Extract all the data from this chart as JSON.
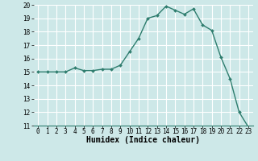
{
  "x": [
    0,
    1,
    2,
    3,
    4,
    5,
    6,
    7,
    8,
    9,
    10,
    11,
    12,
    13,
    14,
    15,
    16,
    17,
    18,
    19,
    20,
    21,
    22,
    23
  ],
  "y": [
    15.0,
    15.0,
    15.0,
    15.0,
    15.3,
    15.1,
    15.1,
    15.2,
    15.2,
    15.5,
    16.5,
    17.5,
    19.0,
    19.2,
    19.9,
    19.6,
    19.3,
    19.7,
    18.5,
    18.1,
    16.1,
    14.5,
    12.0,
    10.9
  ],
  "line_color": "#2e7d6e",
  "marker": "D",
  "marker_size": 2.0,
  "bg_color": "#cde8e8",
  "grid_color": "#ffffff",
  "xlabel": "Humidex (Indice chaleur)",
  "ylim": [
    11,
    20
  ],
  "xlim": [
    -0.5,
    23.5
  ],
  "yticks": [
    11,
    12,
    13,
    14,
    15,
    16,
    17,
    18,
    19,
    20
  ],
  "xticks": [
    0,
    1,
    2,
    3,
    4,
    5,
    6,
    7,
    8,
    9,
    10,
    11,
    12,
    13,
    14,
    15,
    16,
    17,
    18,
    19,
    20,
    21,
    22,
    23
  ],
  "tick_fontsize": 5.5,
  "xlabel_fontsize": 7.0,
  "linewidth": 1.0
}
